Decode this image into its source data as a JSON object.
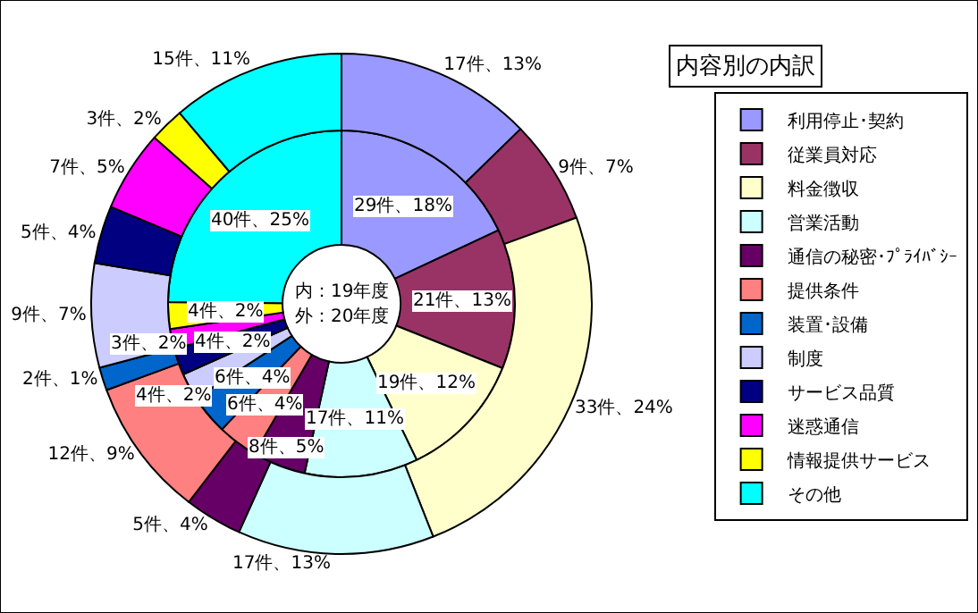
{
  "chart_data": {
    "type": "donut",
    "title": "内容別の内訳",
    "categories": [
      "利用停止･契約",
      "従業員対応",
      "料金徴収",
      "営業活動",
      "通信の秘密･ﾌﾟﾗｲﾊﾞｼｰ",
      "提供条件",
      "装置･設備",
      "制度",
      "サービス品質",
      "迷惑通信",
      "情報提供サービス",
      "その他"
    ],
    "colors": [
      "#9999ff",
      "#993366",
      "#ffffcc",
      "#ccffff",
      "#660066",
      "#ff8080",
      "#0066cc",
      "#ccccff",
      "#000080",
      "#ff00ff",
      "#ffff00",
      "#00ffff"
    ],
    "series": [
      {
        "values": [
          29,
          21,
          19,
          17,
          8,
          6,
          6,
          4,
          4,
          3,
          4,
          40
        ],
        "value_labels": [
          "29件、18%",
          "21件、13%",
          "19件、12%",
          "17件、11%",
          "8件、5%",
          "6件、4%",
          "6件、4%",
          "4件、2%",
          "4件、2%",
          "3件、2%",
          "4件、2%",
          "40件、25%"
        ]
      },
      {
        "values": [
          17,
          9,
          33,
          17,
          5,
          12,
          2,
          9,
          5,
          7,
          3,
          15
        ],
        "value_labels": [
          "17件、13%",
          "9件、7%",
          "33件、24%",
          "17件、13%",
          "5件、4%",
          "12件、9%",
          "2件、1%",
          "9件、7%",
          "5件、4%",
          "7件、5%",
          "3件、2%",
          "15件、11%"
        ]
      }
    ],
    "annotations": [
      "内：19年度",
      "外：20年度"
    ],
    "legend": "right"
  }
}
